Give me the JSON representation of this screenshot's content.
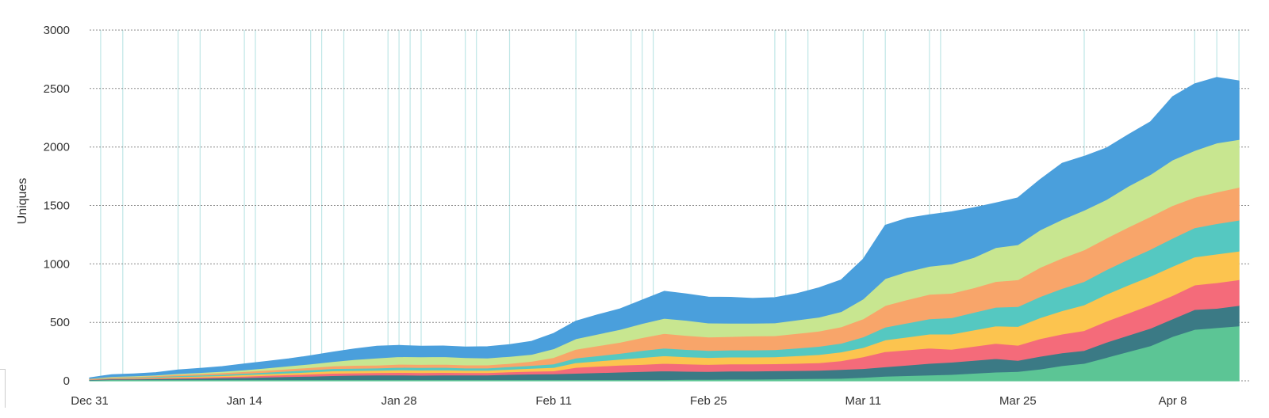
{
  "chart_data": {
    "type": "area",
    "stacked": true,
    "title": "",
    "xlabel": "",
    "ylabel": "Uniques",
    "ylim": [
      0,
      3000
    ],
    "yticks": [
      0,
      500,
      1000,
      1500,
      2000,
      2500,
      3000
    ],
    "xticks": [
      {
        "x": 0,
        "label": "Dec 31"
      },
      {
        "x": 14,
        "label": "Jan 14"
      },
      {
        "x": 28,
        "label": "Jan 28"
      },
      {
        "x": 42,
        "label": "Feb 11"
      },
      {
        "x": 56,
        "label": "Feb 25"
      },
      {
        "x": 70,
        "label": "Mar 11"
      },
      {
        "x": 84,
        "label": "Mar 25"
      },
      {
        "x": 98,
        "label": "Apr 8"
      }
    ],
    "xlim": [
      0,
      105
    ],
    "x": [
      0,
      2,
      4,
      6,
      8,
      10,
      12,
      14,
      16,
      18,
      20,
      22,
      24,
      26,
      28,
      30,
      32,
      34,
      36,
      38,
      40,
      42,
      44,
      46,
      48,
      50,
      52,
      54,
      56,
      58,
      60,
      62,
      64,
      66,
      68,
      70,
      72,
      74,
      76,
      78,
      80,
      82,
      84,
      86,
      88,
      90,
      92,
      94,
      96,
      98,
      100,
      102,
      104
    ],
    "grid": true,
    "legend": "none",
    "event_markers_x": [
      1,
      3,
      8,
      10,
      14,
      15,
      20,
      21,
      23,
      27,
      28,
      29,
      30,
      34,
      35,
      38,
      44,
      49,
      50,
      51,
      62,
      63,
      65,
      70,
      72,
      76,
      77,
      90,
      100,
      102,
      104
    ],
    "event_marker_color": "#bfe6e6",
    "series": [
      {
        "color": "#5cc595",
        "values": [
          5,
          10,
          10,
          10,
          10,
          10,
          10,
          10,
          10,
          10,
          10,
          10,
          10,
          10,
          10,
          10,
          10,
          10,
          10,
          10,
          10,
          10,
          10,
          10,
          10,
          10,
          10,
          12,
          12,
          14,
          14,
          16,
          18,
          20,
          22,
          30,
          40,
          45,
          50,
          55,
          65,
          75,
          80,
          100,
          130,
          150,
          200,
          250,
          300,
          380,
          440,
          455,
          470
        ]
      },
      {
        "color": "#3b7a85",
        "values": [
          5,
          6,
          6,
          8,
          10,
          12,
          15,
          18,
          22,
          26,
          30,
          35,
          38,
          40,
          40,
          38,
          40,
          40,
          40,
          45,
          48,
          50,
          55,
          60,
          65,
          70,
          75,
          70,
          68,
          70,
          70,
          70,
          70,
          70,
          75,
          75,
          80,
          90,
          100,
          105,
          110,
          115,
          95,
          110,
          110,
          110,
          130,
          140,
          150,
          150,
          170,
          165,
          175
        ]
      },
      {
        "color": "#f46b7a",
        "values": [
          2,
          4,
          5,
          6,
          8,
          9,
          10,
          12,
          14,
          16,
          18,
          20,
          20,
          20,
          22,
          22,
          22,
          20,
          20,
          22,
          24,
          25,
          50,
          55,
          60,
          60,
          65,
          62,
          60,
          60,
          60,
          60,
          62,
          65,
          75,
          100,
          130,
          130,
          130,
          110,
          120,
          130,
          130,
          150,
          160,
          170,
          180,
          190,
          200,
          200,
          210,
          220,
          220
        ]
      },
      {
        "color": "#fcc44f",
        "values": [
          3,
          4,
          5,
          6,
          8,
          9,
          10,
          12,
          14,
          16,
          18,
          20,
          20,
          20,
          22,
          22,
          22,
          20,
          20,
          22,
          25,
          30,
          40,
          45,
          50,
          60,
          65,
          62,
          60,
          60,
          60,
          60,
          65,
          70,
          75,
          80,
          100,
          110,
          120,
          130,
          140,
          150,
          160,
          180,
          200,
          220,
          230,
          240,
          245,
          250,
          240,
          245,
          245
        ]
      },
      {
        "color": "#55c8c1",
        "values": [
          2,
          4,
          5,
          6,
          8,
          9,
          10,
          12,
          14,
          16,
          18,
          20,
          20,
          20,
          22,
          22,
          22,
          20,
          20,
          22,
          25,
          30,
          40,
          45,
          50,
          60,
          65,
          62,
          60,
          60,
          60,
          60,
          65,
          70,
          75,
          90,
          110,
          120,
          130,
          140,
          150,
          160,
          170,
          180,
          190,
          200,
          210,
          220,
          230,
          240,
          250,
          260,
          265
        ]
      },
      {
        "color": "#f8a56a",
        "values": [
          2,
          5,
          6,
          8,
          10,
          12,
          14,
          15,
          16,
          18,
          20,
          22,
          25,
          25,
          26,
          26,
          26,
          26,
          26,
          28,
          35,
          55,
          75,
          85,
          95,
          110,
          125,
          120,
          115,
          115,
          120,
          120,
          125,
          130,
          140,
          155,
          185,
          200,
          210,
          210,
          210,
          220,
          230,
          250,
          260,
          270,
          270,
          275,
          280,
          280,
          260,
          270,
          280
        ]
      },
      {
        "color": "#c8e690",
        "values": [
          1,
          4,
          5,
          6,
          8,
          10,
          12,
          15,
          20,
          25,
          30,
          38,
          50,
          60,
          65,
          65,
          65,
          63,
          60,
          60,
          60,
          75,
          90,
          100,
          110,
          120,
          130,
          130,
          120,
          115,
          110,
          110,
          115,
          120,
          130,
          170,
          230,
          240,
          240,
          250,
          260,
          290,
          300,
          320,
          330,
          340,
          330,
          350,
          360,
          390,
          400,
          420,
          410
        ]
      },
      {
        "color": "#4a9fdc",
        "values": [
          5,
          15,
          17,
          20,
          30,
          35,
          40,
          50,
          55,
          60,
          70,
          80,
          90,
          100,
          95,
          90,
          90,
          90,
          95,
          100,
          110,
          130,
          150,
          165,
          175,
          200,
          230,
          225,
          220,
          220,
          210,
          215,
          225,
          250,
          270,
          340,
          455,
          455,
          440,
          445,
          425,
          380,
          400,
          430,
          480,
          460,
          440,
          440,
          450,
          540,
          570,
          560,
          500
        ]
      }
    ]
  }
}
